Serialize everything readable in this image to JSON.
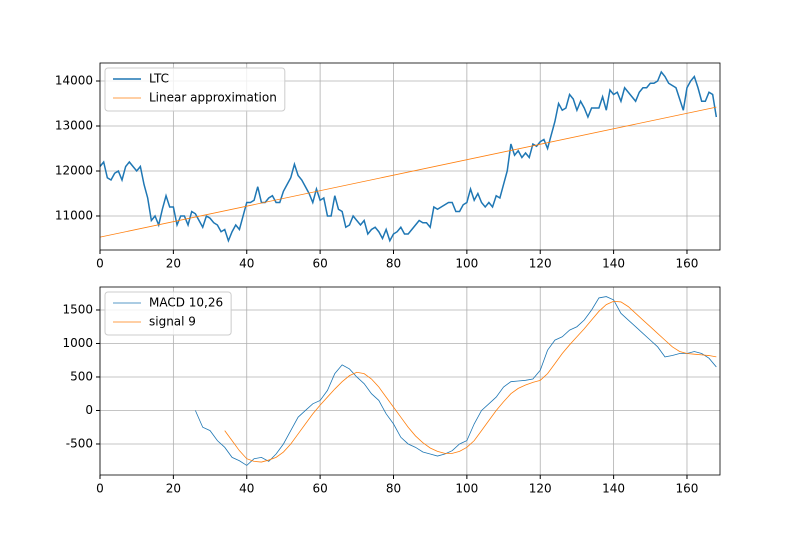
{
  "chart_data": [
    {
      "type": "line",
      "xlim": [
        0,
        169
      ],
      "ylim": [
        10244,
        14400
      ],
      "xticks": [
        0,
        20,
        40,
        60,
        80,
        100,
        120,
        140,
        160
      ],
      "yticks": [
        11000,
        12000,
        13000,
        14000
      ],
      "grid": true,
      "legend": "upper left",
      "series": [
        {
          "name": "LTC",
          "color": "#1f77b4",
          "linewidth": 1.5,
          "x": [
            0,
            1,
            2,
            3,
            4,
            5,
            6,
            7,
            8,
            9,
            10,
            11,
            12,
            13,
            14,
            15,
            16,
            17,
            18,
            19,
            20,
            21,
            22,
            23,
            24,
            25,
            26,
            27,
            28,
            29,
            30,
            31,
            32,
            33,
            34,
            35,
            36,
            37,
            38,
            39,
            40,
            41,
            42,
            43,
            44,
            45,
            46,
            47,
            48,
            49,
            50,
            51,
            52,
            53,
            54,
            55,
            56,
            57,
            58,
            59,
            60,
            61,
            62,
            63,
            64,
            65,
            66,
            67,
            68,
            69,
            70,
            71,
            72,
            73,
            74,
            75,
            76,
            77,
            78,
            79,
            80,
            81,
            82,
            83,
            84,
            85,
            86,
            87,
            88,
            89,
            90,
            91,
            92,
            93,
            94,
            95,
            96,
            97,
            98,
            99,
            100,
            101,
            102,
            103,
            104,
            105,
            106,
            107,
            108,
            109,
            110,
            111,
            112,
            113,
            114,
            115,
            116,
            117,
            118,
            119,
            120,
            121,
            122,
            123,
            124,
            125,
            126,
            127,
            128,
            129,
            130,
            131,
            132,
            133,
            134,
            135,
            136,
            137,
            138,
            139,
            140,
            141,
            142,
            143,
            144,
            145,
            146,
            147,
            148,
            149,
            150,
            151,
            152,
            153,
            154,
            155,
            156,
            157,
            158,
            159,
            160,
            161,
            162,
            163,
            164,
            165,
            166,
            167,
            168
          ],
          "values": [
            12100,
            12200,
            11850,
            11800,
            11950,
            12000,
            11800,
            12100,
            12200,
            12100,
            12000,
            12100,
            11700,
            11400,
            10900,
            11000,
            10800,
            11150,
            11450,
            11200,
            11200,
            10800,
            11000,
            11000,
            10800,
            11100,
            11050,
            10900,
            10750,
            11000,
            10950,
            10850,
            10800,
            10650,
            10700,
            10450,
            10650,
            10800,
            10700,
            11000,
            11300,
            11300,
            11350,
            11650,
            11300,
            11300,
            11400,
            11450,
            11300,
            11300,
            11550,
            11700,
            11850,
            12150,
            11900,
            11800,
            11650,
            11500,
            11300,
            11600,
            11350,
            11400,
            11000,
            11000,
            11450,
            11150,
            11100,
            10750,
            10800,
            11000,
            10900,
            10800,
            10900,
            10600,
            10700,
            10750,
            10650,
            10500,
            10700,
            10450,
            10600,
            10650,
            10750,
            10600,
            10600,
            10700,
            10800,
            10900,
            10850,
            10850,
            10750,
            11200,
            11150,
            11200,
            11250,
            11300,
            11300,
            11100,
            11100,
            11250,
            11300,
            11600,
            11350,
            11500,
            11300,
            11200,
            11300,
            11200,
            11450,
            11400,
            11700,
            12000,
            12600,
            12350,
            12450,
            12300,
            12400,
            12300,
            12600,
            12550,
            12650,
            12700,
            12500,
            12800,
            13100,
            13500,
            13350,
            13400,
            13700,
            13600,
            13350,
            13550,
            13400,
            13200,
            13400,
            13400,
            13400,
            13650,
            13350,
            13800,
            13700,
            13750,
            13550,
            13850,
            13750,
            13650,
            13550,
            13750,
            13850,
            13850,
            13950,
            13950,
            14000,
            14200,
            14100,
            13950,
            13900,
            13850,
            13600,
            13350,
            13850,
            14000,
            14100,
            13850,
            13550,
            13550,
            13750,
            13700,
            13200
          ]
        },
        {
          "name": "Linear approximation",
          "color": "#ff7f0e",
          "linewidth": 0.8,
          "x": [
            0,
            168
          ],
          "values": [
            10530,
            13420
          ]
        }
      ]
    },
    {
      "type": "line",
      "xlim": [
        0,
        169
      ],
      "ylim": [
        -963,
        1843
      ],
      "xticks": [
        0,
        20,
        40,
        60,
        80,
        100,
        120,
        140,
        160
      ],
      "yticks": [
        -500,
        0,
        500,
        1000,
        1500
      ],
      "grid": true,
      "legend": "upper left",
      "series": [
        {
          "name": "MACD 10,26",
          "color": "#1f77b4",
          "linewidth": 0.8,
          "x": [
            26,
            28,
            30,
            32,
            34,
            36,
            38,
            40,
            42,
            44,
            46,
            48,
            50,
            52,
            54,
            56,
            58,
            60,
            62,
            64,
            66,
            68,
            70,
            72,
            74,
            76,
            78,
            80,
            82,
            84,
            86,
            88,
            90,
            92,
            94,
            96,
            98,
            100,
            102,
            104,
            106,
            108,
            110,
            112,
            114,
            116,
            118,
            120,
            122,
            124,
            126,
            128,
            130,
            132,
            134,
            136,
            138,
            140,
            142,
            144,
            146,
            148,
            150,
            152,
            154,
            156,
            158,
            160,
            162,
            164,
            166,
            168
          ],
          "values": [
            0,
            -250,
            -300,
            -450,
            -550,
            -700,
            -750,
            -820,
            -720,
            -700,
            -760,
            -650,
            -500,
            -300,
            -100,
            0,
            100,
            150,
            300,
            550,
            680,
            620,
            500,
            400,
            250,
            150,
            -50,
            -200,
            -400,
            -500,
            -550,
            -620,
            -650,
            -680,
            -650,
            -600,
            -500,
            -450,
            -200,
            0,
            100,
            200,
            350,
            430,
            440,
            450,
            470,
            600,
            900,
            1050,
            1100,
            1200,
            1250,
            1350,
            1500,
            1680,
            1700,
            1650,
            1450,
            1350,
            1250,
            1150,
            1050,
            950,
            800,
            820,
            850,
            850,
            880,
            850,
            780,
            650
          ]
        },
        {
          "name": "signal 9",
          "color": "#ff7f0e",
          "linewidth": 0.8,
          "x": [
            34,
            36,
            38,
            40,
            42,
            44,
            46,
            48,
            50,
            52,
            54,
            56,
            58,
            60,
            62,
            64,
            66,
            68,
            70,
            72,
            74,
            76,
            78,
            80,
            82,
            84,
            86,
            88,
            90,
            92,
            94,
            96,
            98,
            100,
            102,
            104,
            106,
            108,
            110,
            112,
            114,
            116,
            118,
            120,
            122,
            124,
            126,
            128,
            130,
            132,
            134,
            136,
            138,
            140,
            142,
            144,
            146,
            148,
            150,
            152,
            154,
            156,
            158,
            160,
            162,
            164,
            166,
            168
          ],
          "values": [
            -300,
            -450,
            -600,
            -720,
            -760,
            -770,
            -740,
            -700,
            -620,
            -500,
            -350,
            -200,
            -50,
            80,
            200,
            320,
            430,
            520,
            570,
            550,
            470,
            350,
            200,
            50,
            -100,
            -250,
            -380,
            -480,
            -560,
            -610,
            -640,
            -640,
            -610,
            -550,
            -450,
            -300,
            -150,
            0,
            130,
            250,
            330,
            380,
            420,
            450,
            550,
            700,
            850,
            980,
            1100,
            1220,
            1350,
            1480,
            1580,
            1630,
            1620,
            1550,
            1450,
            1350,
            1250,
            1150,
            1050,
            950,
            880,
            850,
            840,
            830,
            820,
            800
          ]
        }
      ]
    }
  ]
}
